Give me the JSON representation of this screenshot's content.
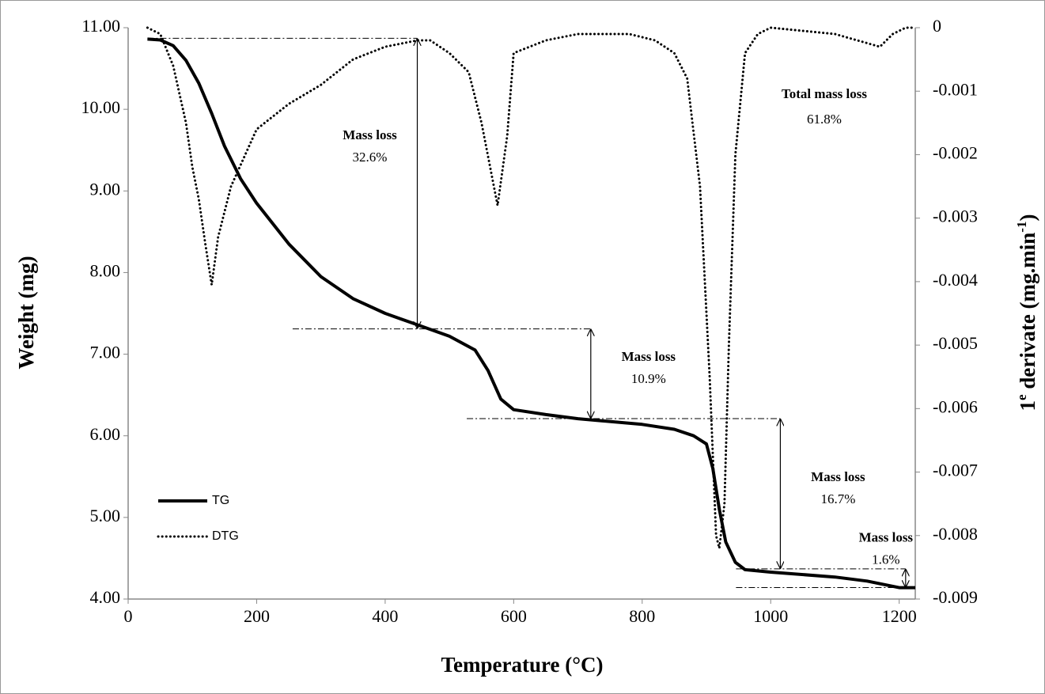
{
  "chart_data": {
    "type": "line",
    "xlabel": "Temperature (°C)",
    "ylabel": "Weight (mg)",
    "y2label_parts": [
      "1",
      "e",
      " derivate (mg.min",
      "-1",
      ")"
    ],
    "xlim": [
      0,
      1225
    ],
    "xticks": [
      0,
      200,
      400,
      600,
      800,
      1000,
      1200
    ],
    "ylim": [
      4,
      11
    ],
    "yticks": [
      {
        "value": 4,
        "label": "4.00"
      },
      {
        "value": 5,
        "label": "5.00"
      },
      {
        "value": 6,
        "label": "6.00"
      },
      {
        "value": 7,
        "label": "7.00"
      },
      {
        "value": 8,
        "label": "8.00"
      },
      {
        "value": 9,
        "label": "9.00"
      },
      {
        "value": 10,
        "label": "10.00"
      },
      {
        "value": 11,
        "label": "11.00"
      }
    ],
    "y2lim": [
      -0.009,
      0
    ],
    "y2ticks": [
      -0.009,
      -0.008,
      -0.007,
      -0.006,
      -0.005,
      -0.004,
      -0.003,
      -0.002,
      -0.001,
      0
    ],
    "legend": "lower left",
    "series": [
      {
        "name": "TG",
        "color": "#000000",
        "style": "solid",
        "x": [
          30,
          50,
          70,
          90,
          110,
          130,
          150,
          175,
          200,
          250,
          300,
          350,
          400,
          450,
          500,
          540,
          560,
          580,
          600,
          650,
          700,
          800,
          850,
          880,
          900,
          910,
          920,
          930,
          945,
          960,
          1000,
          1100,
          1150,
          1200,
          1225
        ],
        "values": [
          10.86,
          10.85,
          10.78,
          10.6,
          10.32,
          9.95,
          9.55,
          9.15,
          8.85,
          8.35,
          7.95,
          7.68,
          7.5,
          7.36,
          7.22,
          7.05,
          6.8,
          6.45,
          6.32,
          6.26,
          6.21,
          6.14,
          6.08,
          6.0,
          5.9,
          5.6,
          5.1,
          4.7,
          4.45,
          4.36,
          4.33,
          4.27,
          4.22,
          4.14,
          4.14
        ]
      },
      {
        "name": "DTG",
        "color": "#000000",
        "style": "dotted",
        "axis": "y2",
        "x": [
          30,
          50,
          70,
          90,
          100,
          110,
          120,
          130,
          140,
          160,
          200,
          250,
          300,
          350,
          400,
          450,
          470,
          500,
          530,
          550,
          575,
          590,
          600,
          650,
          700,
          780,
          820,
          850,
          870,
          890,
          905,
          915,
          920,
          928,
          935,
          945,
          960,
          980,
          1000,
          1100,
          1170,
          1190,
          1210,
          1225
        ],
        "values": [
          0,
          -0.0001,
          -0.0006,
          -0.0015,
          -0.0022,
          -0.0027,
          -0.0034,
          -0.00405,
          -0.0033,
          -0.0025,
          -0.0016,
          -0.0012,
          -0.0009,
          -0.0005,
          -0.0003,
          -0.0002,
          -0.0002,
          -0.0004,
          -0.0007,
          -0.0015,
          -0.0028,
          -0.0017,
          -0.0004,
          -0.0002,
          -0.0001,
          -0.0001,
          -0.0002,
          -0.0004,
          -0.0008,
          -0.0025,
          -0.0055,
          -0.008,
          -0.0082,
          -0.0075,
          -0.005,
          -0.002,
          -0.0004,
          -0.0001,
          0,
          -0.0001,
          -0.0003,
          -0.0001,
          0,
          0
        ]
      }
    ],
    "annotations": [
      {
        "label": "Mass loss",
        "text": "32.6%",
        "x": 450,
        "from": 10.87,
        "to": 7.31,
        "line_x": [
          30,
          450
        ],
        "side": "left"
      },
      {
        "label": "Mass loss",
        "text": "10.9%",
        "x": 720,
        "from": 7.31,
        "to": 6.21,
        "line_x": [
          256,
          720
        ],
        "side": "right"
      },
      {
        "label": "Mass loss",
        "text": "16.7%",
        "x": 1015,
        "from": 6.21,
        "to": 4.37,
        "line_x": [
          527,
          1015
        ],
        "side": "right"
      },
      {
        "label": "Mass loss",
        "text": "1.6%",
        "x": 1210,
        "from": 4.37,
        "to": 4.14,
        "line_x": [
          946,
          1210
        ],
        "side": "above"
      }
    ],
    "total": {
      "label": "Total mass loss",
      "text": "61.8%"
    }
  }
}
